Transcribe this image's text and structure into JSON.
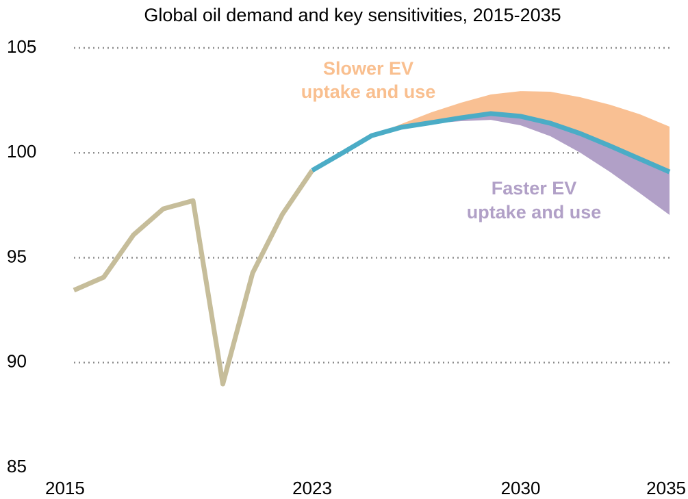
{
  "chart_data": {
    "type": "line",
    "title": "Global oil demand and key sensitivities, 2015-2035",
    "xlim": [
      2015,
      2035
    ],
    "xticks": [
      2015,
      2023,
      2030,
      2035
    ],
    "ylim": [
      85,
      105
    ],
    "yticks": [
      85,
      90,
      95,
      100,
      105
    ],
    "grid": true,
    "series": [
      {
        "color": "#c6bd9a",
        "x": [
          2015,
          2016,
          2017,
          2018,
          2019,
          2020,
          2021,
          2022,
          2023
        ],
        "values": [
          93.45,
          94.07,
          96.09,
          97.33,
          97.72,
          88.98,
          94.27,
          97.07,
          99.16
        ]
      },
      {
        "color": "#4bacc6",
        "x": [
          2023,
          2024,
          2025,
          2026,
          2027,
          2028,
          2029,
          2030,
          2031,
          2032,
          2033,
          2034,
          2035
        ],
        "values": [
          99.16,
          99.98,
          100.82,
          101.22,
          101.44,
          101.67,
          101.87,
          101.74,
          101.41,
          100.92,
          100.33,
          99.71,
          99.09
        ]
      },
      {
        "label": [
          "Slower EV",
          "uptake and use"
        ],
        "color": "#f9c093",
        "text_color": "#f9bf8f",
        "x": [
          2025,
          2026,
          2027,
          2028,
          2029,
          2030,
          2031,
          2032,
          2033,
          2034,
          2035
        ],
        "values": [
          100.82,
          101.38,
          101.93,
          102.39,
          102.78,
          102.94,
          102.91,
          102.65,
          102.29,
          101.84,
          101.25
        ]
      },
      {
        "label": [
          "Faster EV",
          "uptake and use"
        ],
        "color": "#b1a0c7",
        "text_color": "#b1a0c7",
        "x": [
          2025,
          2026,
          2027,
          2028,
          2029,
          2030,
          2031,
          2032,
          2033,
          2034,
          2035
        ],
        "values": [
          100.82,
          101.2,
          101.4,
          101.51,
          101.57,
          101.31,
          100.79,
          100.01,
          99.09,
          98.08,
          97.04
        ]
      }
    ]
  }
}
